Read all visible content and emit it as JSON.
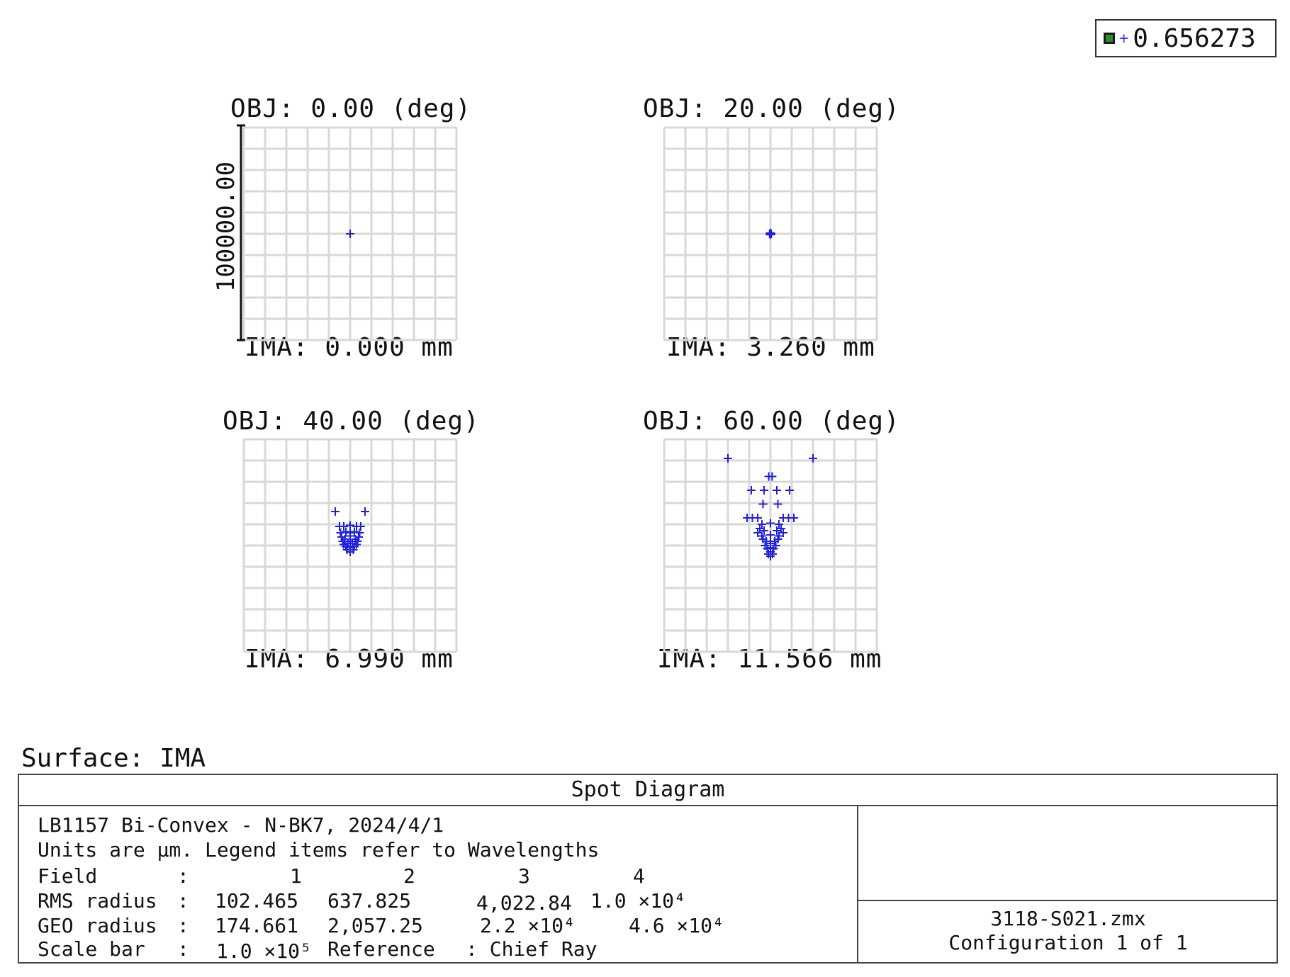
{
  "legend": {
    "value": "0.656273",
    "wavelength_color": "#3a3aff",
    "check_color": "#2e8b2e"
  },
  "surface_label": "Surface: IMA",
  "footer": {
    "title": "Spot Diagram",
    "line1": "LB1157 Bi-Convex - N-BK7, 2024/4/1",
    "line2": "Units are µm. Legend items refer to Wavelengths",
    "field_label": "Field",
    "rms_label": "RMS radius",
    "geo_label": "GEO radius",
    "scale_label": "Scale bar",
    "colon": ":",
    "fields": [
      "1",
      "2",
      "3",
      "4"
    ],
    "rms": [
      "102.465",
      "637.825",
      "4,022.84",
      "1.0 ×10⁴"
    ],
    "geo": [
      "174.661",
      "2,057.25",
      "2.2 ×10⁴",
      "4.6 ×10⁴"
    ],
    "scale": "1.0 ×10⁵",
    "reference": "Reference",
    "reference_value": ": Chief Ray",
    "file": "3118-S021.zmx",
    "config": "Configuration 1 of 1"
  },
  "chart_data": {
    "type": "scatter",
    "scale_bar_label": "100000.00",
    "grid_color": "#d8d8d8",
    "point_color": "#2020dd",
    "plots": [
      {
        "title": "OBJ: 0.00 (deg)",
        "ima": "IMA: 0.000 mm",
        "points": [
          [
            0,
            0
          ]
        ]
      },
      {
        "title": "OBJ: 20.00 (deg)",
        "ima": "IMA: 3.260 mm",
        "points": [
          [
            0,
            0
          ],
          [
            -0.04,
            0
          ],
          [
            0.04,
            0
          ],
          [
            0,
            0.04
          ],
          [
            0,
            -0.04
          ]
        ]
      },
      {
        "title": "OBJ: 40.00 (deg)",
        "ima": "IMA: 6.990 mm",
        "points": [
          [
            -0.7,
            1.6
          ],
          [
            0.7,
            1.6
          ],
          [
            -0.5,
            0.9
          ],
          [
            -0.3,
            0.9
          ],
          [
            0,
            0.95
          ],
          [
            0.3,
            0.9
          ],
          [
            0.5,
            0.9
          ],
          [
            -0.45,
            0.6
          ],
          [
            -0.2,
            0.65
          ],
          [
            0.2,
            0.65
          ],
          [
            0.45,
            0.6
          ],
          [
            -0.4,
            0.4
          ],
          [
            0,
            0.45
          ],
          [
            0.4,
            0.4
          ],
          [
            -0.35,
            0.2
          ],
          [
            0.35,
            0.2
          ],
          [
            -0.3,
            0.05
          ],
          [
            0.3,
            0.05
          ],
          [
            0,
            0.2
          ],
          [
            -0.2,
            -0.05
          ],
          [
            0.2,
            -0.05
          ],
          [
            0,
            -0.1
          ],
          [
            -0.15,
            -0.2
          ],
          [
            0.15,
            -0.2
          ],
          [
            0,
            -0.3
          ],
          [
            -0.25,
            0.3
          ],
          [
            0.25,
            0.3
          ],
          [
            -0.1,
            0.1
          ],
          [
            0.1,
            0.1
          ],
          [
            0,
            0.6
          ]
        ]
      },
      {
        "title": "OBJ: 60.00 (deg)",
        "ima": "IMA: 11.566 mm",
        "points": [
          [
            -2.0,
            4.1
          ],
          [
            2.0,
            4.1
          ],
          [
            -0.08,
            3.25
          ],
          [
            0.08,
            3.25
          ],
          [
            -0.9,
            2.6
          ],
          [
            -0.3,
            2.6
          ],
          [
            0.3,
            2.6
          ],
          [
            0.9,
            2.6
          ],
          [
            -0.35,
            1.95
          ],
          [
            0.35,
            1.95
          ],
          [
            -1.1,
            1.3
          ],
          [
            -0.85,
            1.3
          ],
          [
            -0.6,
            1.3
          ],
          [
            0.6,
            1.3
          ],
          [
            0.85,
            1.3
          ],
          [
            1.1,
            1.3
          ],
          [
            -0.4,
            1.0
          ],
          [
            0,
            1.05
          ],
          [
            0.4,
            1.0
          ],
          [
            -0.5,
            0.8
          ],
          [
            0.5,
            0.8
          ],
          [
            -0.3,
            0.7
          ],
          [
            0.3,
            0.7
          ],
          [
            -0.6,
            0.6
          ],
          [
            0.6,
            0.6
          ],
          [
            -0.4,
            0.45
          ],
          [
            0,
            0.5
          ],
          [
            0.4,
            0.45
          ],
          [
            -0.35,
            0.3
          ],
          [
            0.35,
            0.3
          ],
          [
            -0.2,
            0.2
          ],
          [
            0.2,
            0.2
          ],
          [
            0,
            0.1
          ],
          [
            -0.25,
            0
          ],
          [
            0.25,
            0
          ],
          [
            0,
            -0.1
          ],
          [
            -0.15,
            -0.15
          ],
          [
            0.15,
            -0.15
          ],
          [
            0,
            -0.3
          ],
          [
            -0.1,
            -0.4
          ],
          [
            0.1,
            -0.4
          ],
          [
            0,
            -0.5
          ]
        ]
      }
    ]
  }
}
